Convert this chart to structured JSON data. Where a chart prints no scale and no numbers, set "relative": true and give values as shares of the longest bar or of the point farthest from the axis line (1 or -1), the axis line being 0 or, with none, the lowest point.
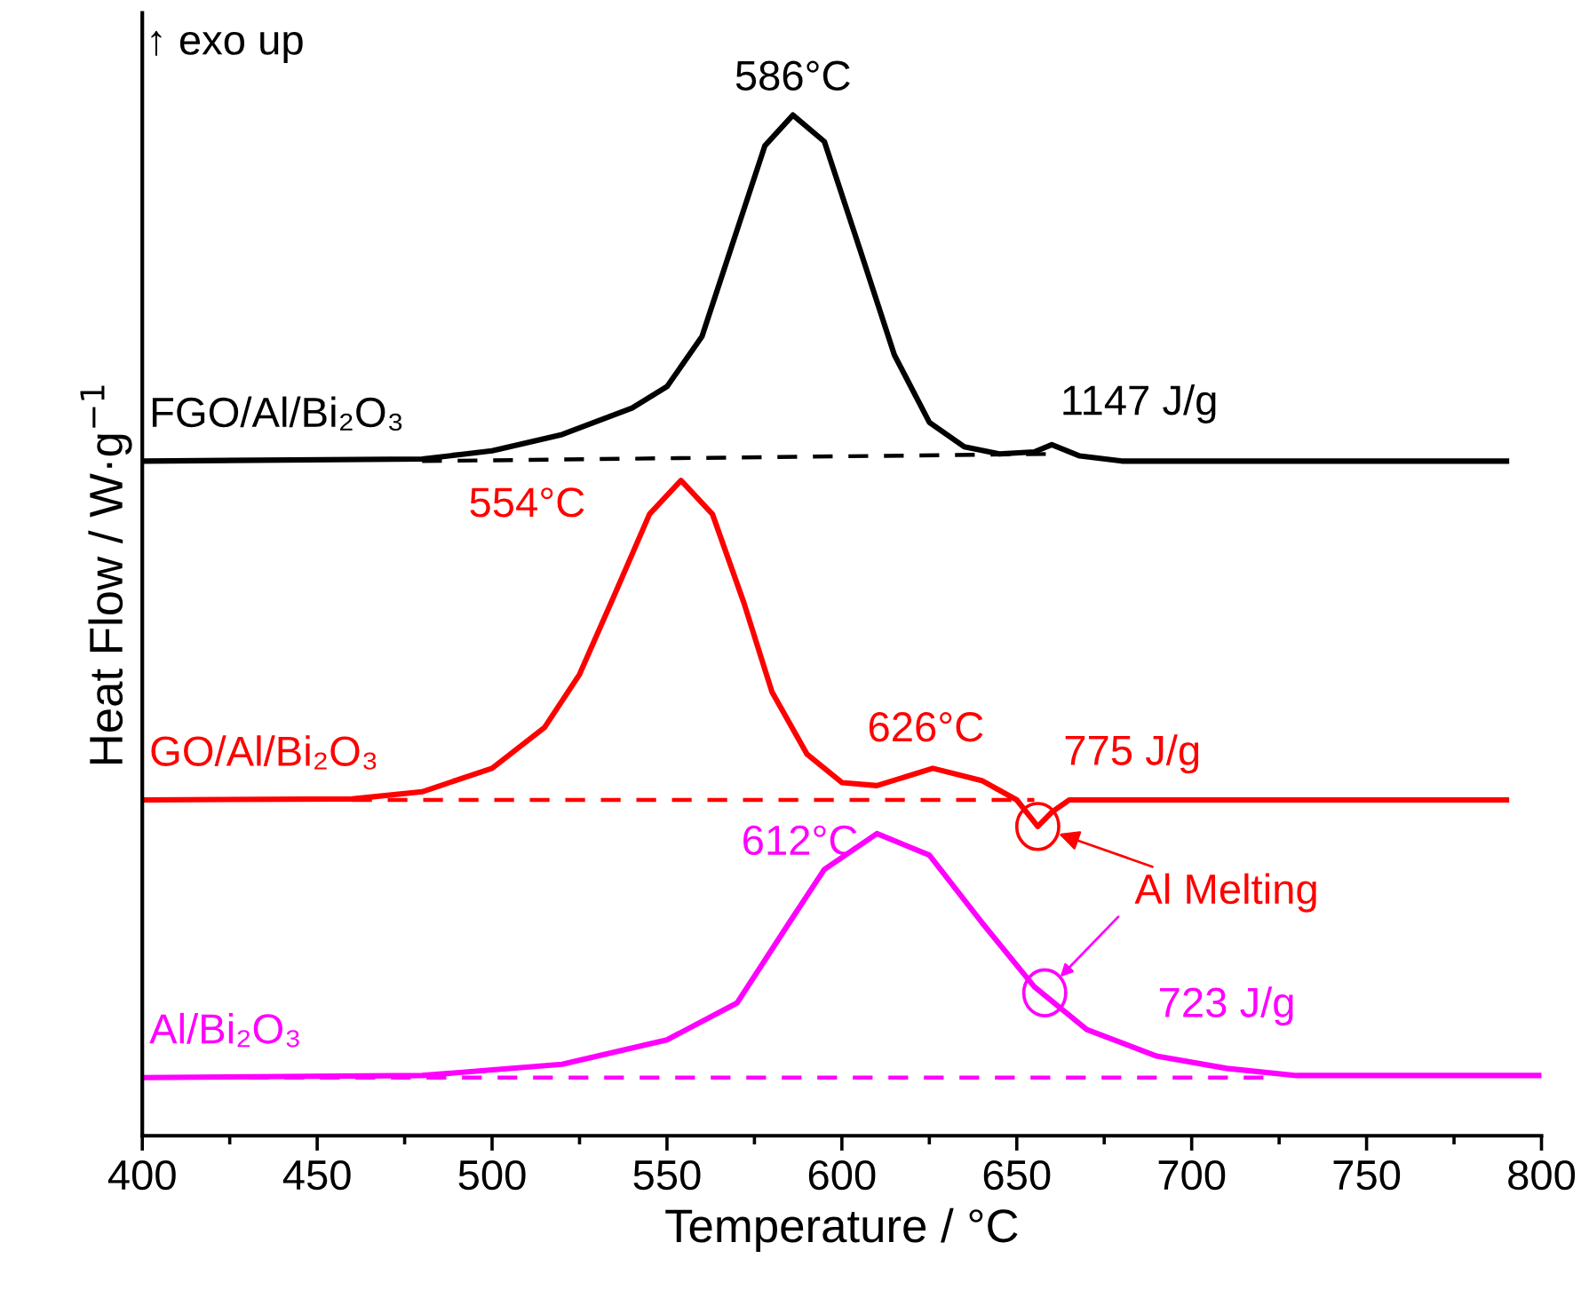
{
  "chart_data": {
    "type": "line",
    "relative": true,
    "xlabel": "Temperature / °C",
    "ylabel": "Heat Flow / W·g$^{−1}$",
    "xlim": [
      400,
      800
    ],
    "xticks": [
      400,
      450,
      500,
      550,
      600,
      650,
      700,
      750,
      800
    ],
    "legend": false,
    "grid": false,
    "marker": "none",
    "series": [
      {
        "name": "FGO/Al/Bi₂O₃",
        "color": "#000000",
        "line_style": "solid",
        "x": [
          400,
          480,
          500,
          520,
          540,
          550,
          560,
          570,
          578,
          586,
          595,
          605,
          615,
          625,
          635,
          645,
          655,
          660,
          668,
          680,
          790
        ],
        "values": [
          0.661,
          0.663,
          0.671,
          0.687,
          0.713,
          0.734,
          0.783,
          0.887,
          0.97,
          1,
          0.974,
          0.87,
          0.765,
          0.699,
          0.675,
          0.668,
          0.67,
          0.677,
          0.666,
          0.661,
          0.661
        ]
      },
      {
        "color": "#000000",
        "line_style": "dashed",
        "x": [
          480,
          660
        ],
        "values": [
          0.661,
          0.668
        ]
      },
      {
        "name": "GO/Al/Bi₂O₃",
        "color": "#ff0000",
        "line_style": "solid",
        "x": [
          400,
          460,
          480,
          500,
          515,
          525,
          535,
          545,
          554,
          563,
          572,
          580,
          590,
          600,
          610,
          626,
          640,
          650,
          656,
          660,
          665,
          790
        ],
        "values": [
          0.329,
          0.33,
          0.337,
          0.36,
          0.4,
          0.452,
          0.53,
          0.609,
          0.642,
          0.609,
          0.522,
          0.435,
          0.374,
          0.346,
          0.343,
          0.36,
          0.348,
          0.329,
          0.303,
          0.317,
          0.329,
          0.329
        ]
      },
      {
        "color": "#ff0000",
        "line_style": "dashed",
        "x": [
          460,
          655
        ],
        "values": [
          0.329,
          0.329
        ]
      },
      {
        "name": "Al/Bi₂O₃",
        "color": "#ff00ff",
        "line_style": "solid",
        "x": [
          400,
          480,
          520,
          550,
          570,
          585,
          595,
          610,
          625,
          640,
          655,
          670,
          690,
          710,
          730,
          800
        ],
        "values": [
          0.057,
          0.059,
          0.07,
          0.094,
          0.13,
          0.209,
          0.261,
          0.296,
          0.275,
          0.209,
          0.146,
          0.104,
          0.078,
          0.066,
          0.059,
          0.059
        ]
      },
      {
        "color": "#ff00ff",
        "line_style": "dashed",
        "x": [
          400,
          725
        ],
        "values": [
          0.057,
          0.057
        ]
      }
    ],
    "annotations": [
      {
        "text": "586°C",
        "x": 586,
        "y": 1
      },
      {
        "text": "554°C",
        "x": 554,
        "y": 0.642
      },
      {
        "text": "626°C",
        "x": 626,
        "y": 0.36
      },
      {
        "text": "612°C",
        "x": 612,
        "y": 0.296
      },
      {
        "text": "Al Melting",
        "x": 656,
        "y": 0.303
      },
      "↑ exo up",
      "1147 J/g",
      "775 J/g",
      "723 J/g"
    ]
  }
}
